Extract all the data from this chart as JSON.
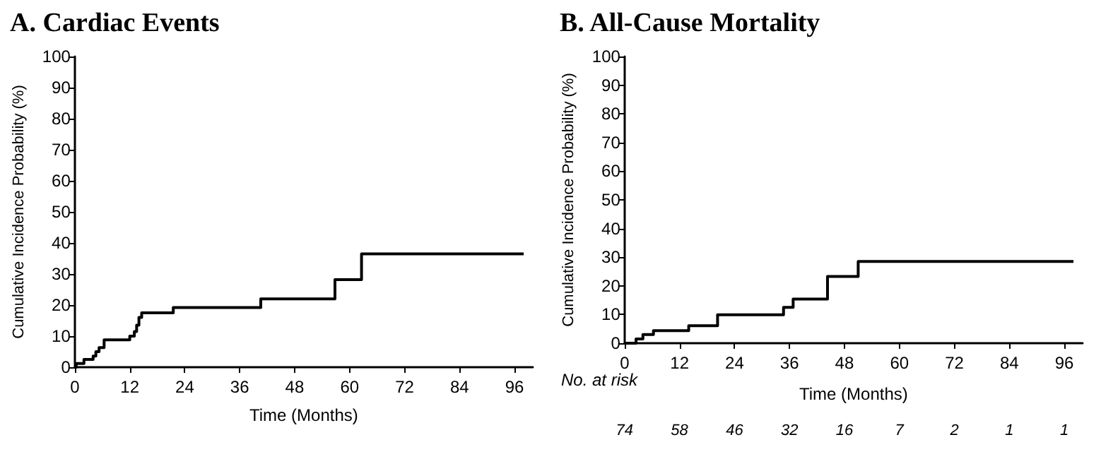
{
  "chart_data": [
    {
      "type": "step",
      "title": "A. Cardiac Events",
      "xlabel": "Time (Months)",
      "ylabel": "Cumulative Incidence Probability (%)",
      "xlim": [
        0,
        100
      ],
      "xticks": [
        0,
        12,
        24,
        36,
        48,
        60,
        72,
        84,
        96
      ],
      "ylim": [
        0,
        100
      ],
      "yticks": [
        0,
        10,
        20,
        30,
        40,
        50,
        60,
        70,
        80,
        90,
        100
      ],
      "grid": false,
      "marker": "none",
      "line_style": "solid",
      "series": [
        {
          "color": "#000000",
          "x": [
            0,
            0.3,
            2,
            4,
            4.6,
            5.3,
            6.4,
            12,
            13,
            13.5,
            14,
            14.6,
            21.5,
            40.6,
            56.8,
            62.6,
            98
          ],
          "values": [
            0,
            1.2,
            2.5,
            3.6,
            5,
            6.3,
            8.8,
            10,
            11.5,
            13.5,
            16,
            17.5,
            19.2,
            22,
            28.2,
            36.5,
            36.5
          ]
        }
      ]
    },
    {
      "type": "step",
      "title": "B. All-Cause Mortality",
      "xlabel": "Time (Months)",
      "ylabel": "Cumulative Incidence Probability (%)",
      "xlim": [
        0,
        100
      ],
      "xticks": [
        0,
        12,
        24,
        36,
        48,
        60,
        72,
        84,
        96
      ],
      "ylim": [
        0,
        100
      ],
      "yticks": [
        0,
        10,
        20,
        30,
        40,
        50,
        60,
        70,
        80,
        90,
        100
      ],
      "grid": false,
      "marker": "none",
      "line_style": "solid",
      "series": [
        {
          "color": "#000000",
          "x": [
            0,
            2.5,
            4,
            6.3,
            14,
            20.3,
            34.7,
            36.8,
            44.3,
            51,
            98
          ],
          "values": [
            0,
            1.5,
            3,
            4.4,
            6.1,
            9.9,
            12.5,
            15.4,
            23.3,
            28.5,
            28.5
          ]
        }
      ],
      "annotations": [
        "No. at risk",
        "74",
        "58",
        "46",
        "32",
        "16",
        "7",
        "2",
        "1",
        "1"
      ]
    }
  ]
}
